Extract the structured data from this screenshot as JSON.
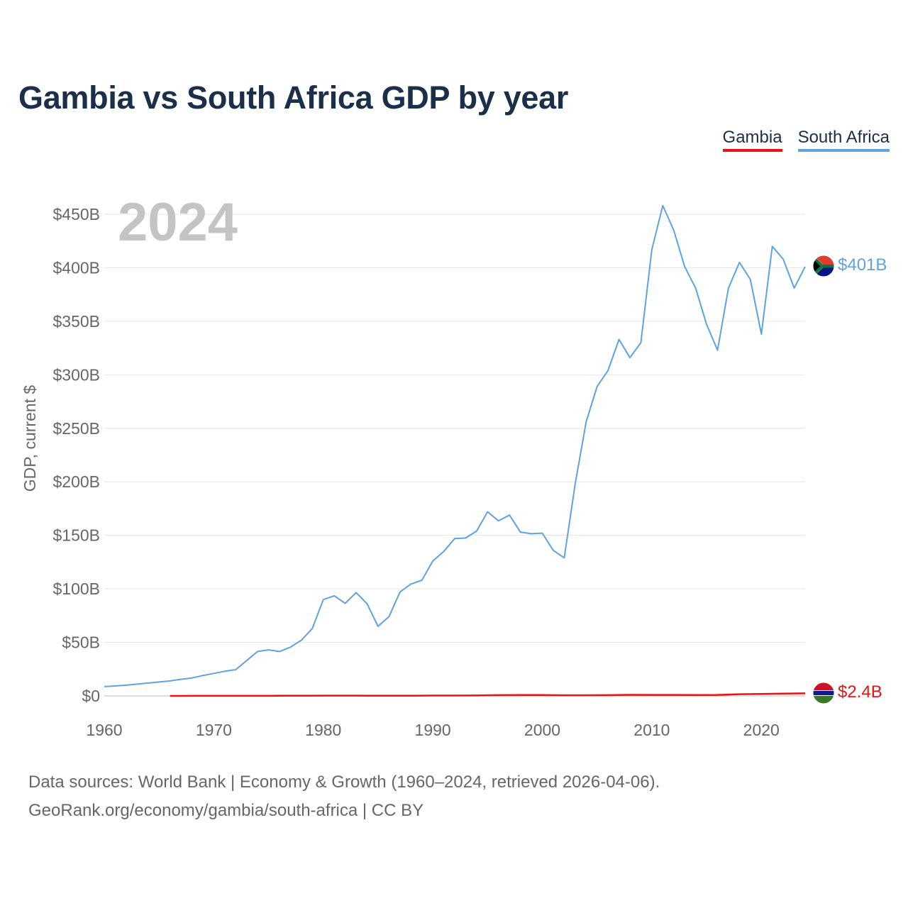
{
  "title": "Gambia vs South Africa GDP by year",
  "legend": [
    {
      "label": "Gambia",
      "color": "#ee1111"
    },
    {
      "label": "South Africa",
      "color": "#5fa2e0"
    }
  ],
  "year_label": "2024",
  "footer": {
    "line1": "Data sources: World Bank | Economy & Growth (1960–2024, retrieved 2026-04-06).",
    "line2": "GeoRank.org/economy/gambia/south-africa | CC BY"
  },
  "chart_data": {
    "type": "line",
    "title": "Gambia vs South Africa GDP by year",
    "xlabel": "",
    "ylabel": "GDP, current $",
    "xlim": [
      1960,
      2024
    ],
    "ylim": [
      0,
      450
    ],
    "y_unit": "billion USD",
    "x_ticks": [
      1960,
      1970,
      1980,
      1990,
      2000,
      2010,
      2020
    ],
    "x_tick_labels": [
      "1960",
      "1970",
      "1980",
      "1990",
      "2000",
      "2010",
      "2020"
    ],
    "y_ticks": [
      0,
      50,
      100,
      150,
      200,
      250,
      300,
      350,
      400,
      450
    ],
    "y_tick_labels": [
      "$0",
      "$50B",
      "$100B",
      "$150B",
      "$200B",
      "$250B",
      "$300B",
      "$350B",
      "$400B",
      "$450B"
    ],
    "grid": true,
    "legend_position": "top-right",
    "series": [
      {
        "name": "Gambia",
        "color": "#ee1111",
        "end_label": "$2.4B",
        "x": [
          1966,
          1968,
          1970,
          1972,
          1974,
          1976,
          1978,
          1980,
          1982,
          1984,
          1986,
          1988,
          1990,
          1992,
          1994,
          1996,
          1998,
          2000,
          2002,
          2004,
          2006,
          2008,
          2010,
          2012,
          2014,
          2016,
          2018,
          2020,
          2022,
          2024
        ],
        "y": [
          0.03,
          0.04,
          0.05,
          0.06,
          0.09,
          0.13,
          0.17,
          0.24,
          0.24,
          0.23,
          0.13,
          0.21,
          0.32,
          0.36,
          0.38,
          0.75,
          0.78,
          0.78,
          0.58,
          0.58,
          0.74,
          0.97,
          0.95,
          0.9,
          0.89,
          0.95,
          1.6,
          1.8,
          2.2,
          2.4
        ]
      },
      {
        "name": "South Africa",
        "color": "#5fa2e0",
        "end_label": "$401B",
        "x": [
          1960,
          1961,
          1962,
          1963,
          1964,
          1965,
          1966,
          1967,
          1968,
          1969,
          1970,
          1971,
          1972,
          1973,
          1974,
          1975,
          1976,
          1977,
          1978,
          1979,
          1980,
          1981,
          1982,
          1983,
          1984,
          1985,
          1986,
          1987,
          1988,
          1989,
          1990,
          1991,
          1992,
          1993,
          1994,
          1995,
          1996,
          1997,
          1998,
          1999,
          2000,
          2001,
          2002,
          2003,
          2004,
          2005,
          2006,
          2007,
          2008,
          2009,
          2010,
          2011,
          2012,
          2013,
          2014,
          2015,
          2016,
          2017,
          2018,
          2019,
          2020,
          2021,
          2022,
          2023,
          2024
        ],
        "y": [
          8.7,
          9.3,
          10.0,
          11.0,
          12.0,
          13.0,
          14.0,
          15.5,
          16.8,
          19.0,
          21.0,
          23.0,
          24.5,
          33.0,
          41.5,
          43.0,
          41.5,
          45.5,
          52.0,
          63.0,
          90.0,
          93.5,
          86.5,
          96.5,
          86.0,
          65.0,
          74.0,
          97.0,
          104.5,
          108.0,
          126.0,
          135.0,
          147.0,
          147.5,
          154.0,
          172.0,
          163.5,
          169.0,
          153.0,
          151.5,
          152.0,
          136.0,
          129.0,
          198.0,
          256.0,
          289.0,
          304.0,
          333.0,
          316.0,
          330.0,
          417.0,
          458.0,
          435.0,
          401.0,
          381.0,
          347.0,
          323.0,
          381.0,
          405.0,
          389.0,
          338.0,
          420.0,
          408.0,
          381.0,
          401.0
        ]
      }
    ]
  }
}
